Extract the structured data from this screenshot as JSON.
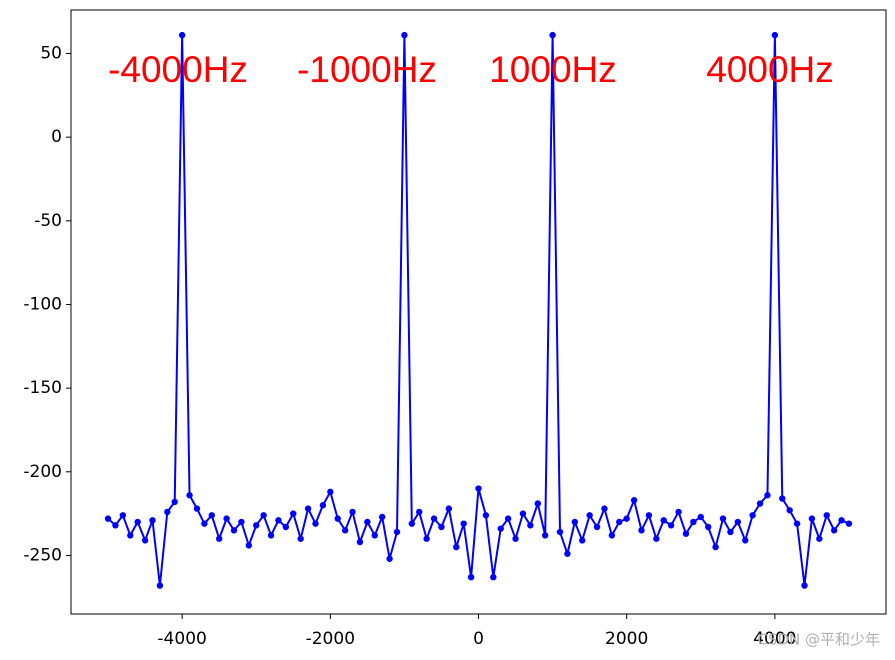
{
  "chart_data": {
    "type": "line",
    "annotations": [
      "-4000Hz",
      "-1000Hz",
      "1000Hz",
      "4000Hz"
    ],
    "watermark": "CSDN @平和少年",
    "x": [
      -5000,
      -4900,
      -4800,
      -4700,
      -4600,
      -4500,
      -4400,
      -4300,
      -4200,
      -4100,
      -4000,
      -3900,
      -3800,
      -3700,
      -3600,
      -3500,
      -3400,
      -3300,
      -3200,
      -3100,
      -3000,
      -2900,
      -2800,
      -2700,
      -2600,
      -2500,
      -2400,
      -2300,
      -2200,
      -2100,
      -2000,
      -1900,
      -1800,
      -1700,
      -1600,
      -1500,
      -1400,
      -1300,
      -1200,
      -1100,
      -1000,
      -900,
      -800,
      -700,
      -600,
      -500,
      -400,
      -300,
      -200,
      -100,
      0,
      100,
      200,
      300,
      400,
      500,
      600,
      700,
      800,
      900,
      1000,
      1100,
      1200,
      1300,
      1400,
      1500,
      1600,
      1700,
      1800,
      1900,
      2000,
      2100,
      2200,
      2300,
      2400,
      2500,
      2600,
      2700,
      2800,
      2900,
      3000,
      3100,
      3200,
      3300,
      3400,
      3500,
      3600,
      3700,
      3800,
      3900,
      4000,
      4100,
      4200,
      4300,
      4400,
      4500,
      4600,
      4700,
      4800,
      4900,
      5000
    ],
    "series": [
      {
        "color": "#0000ff",
        "values": [
          -228,
          -232,
          -226,
          -238,
          -230,
          -241,
          -229,
          -268,
          -224,
          -218,
          61,
          -214,
          -222,
          -231,
          -226,
          -240,
          -228,
          -235,
          -230,
          -244,
          -232,
          -226,
          -238,
          -229,
          -233,
          -225,
          -240,
          -222,
          -231,
          -220,
          -212,
          -228,
          -235,
          -224,
          -242,
          -230,
          -238,
          -227,
          -252,
          -236,
          61,
          -231,
          -224,
          -240,
          -228,
          -233,
          -222,
          -245,
          -231,
          -263,
          -210,
          -226,
          -263,
          -234,
          -228,
          -240,
          -225,
          -232,
          -219,
          -238,
          61,
          -236,
          -249,
          -230,
          -241,
          -226,
          -233,
          -222,
          -238,
          -230,
          -228,
          -217,
          -235,
          -226,
          -240,
          -229,
          -232,
          -224,
          -237,
          -230,
          -227,
          -233,
          -245,
          -228,
          -236,
          -230,
          -241,
          -226,
          -219,
          -214,
          61,
          -216,
          -223,
          -231,
          -268,
          -228,
          -240,
          -226,
          -235,
          -229,
          -231
        ]
      }
    ],
    "xlim": [
      -5500,
      5500
    ],
    "ylim": [
      -285,
      76
    ],
    "xticks": [
      -4000,
      -2000,
      0,
      2000,
      4000
    ],
    "yticks": [
      50,
      0,
      -50,
      -100,
      -150,
      -200,
      -250
    ]
  }
}
